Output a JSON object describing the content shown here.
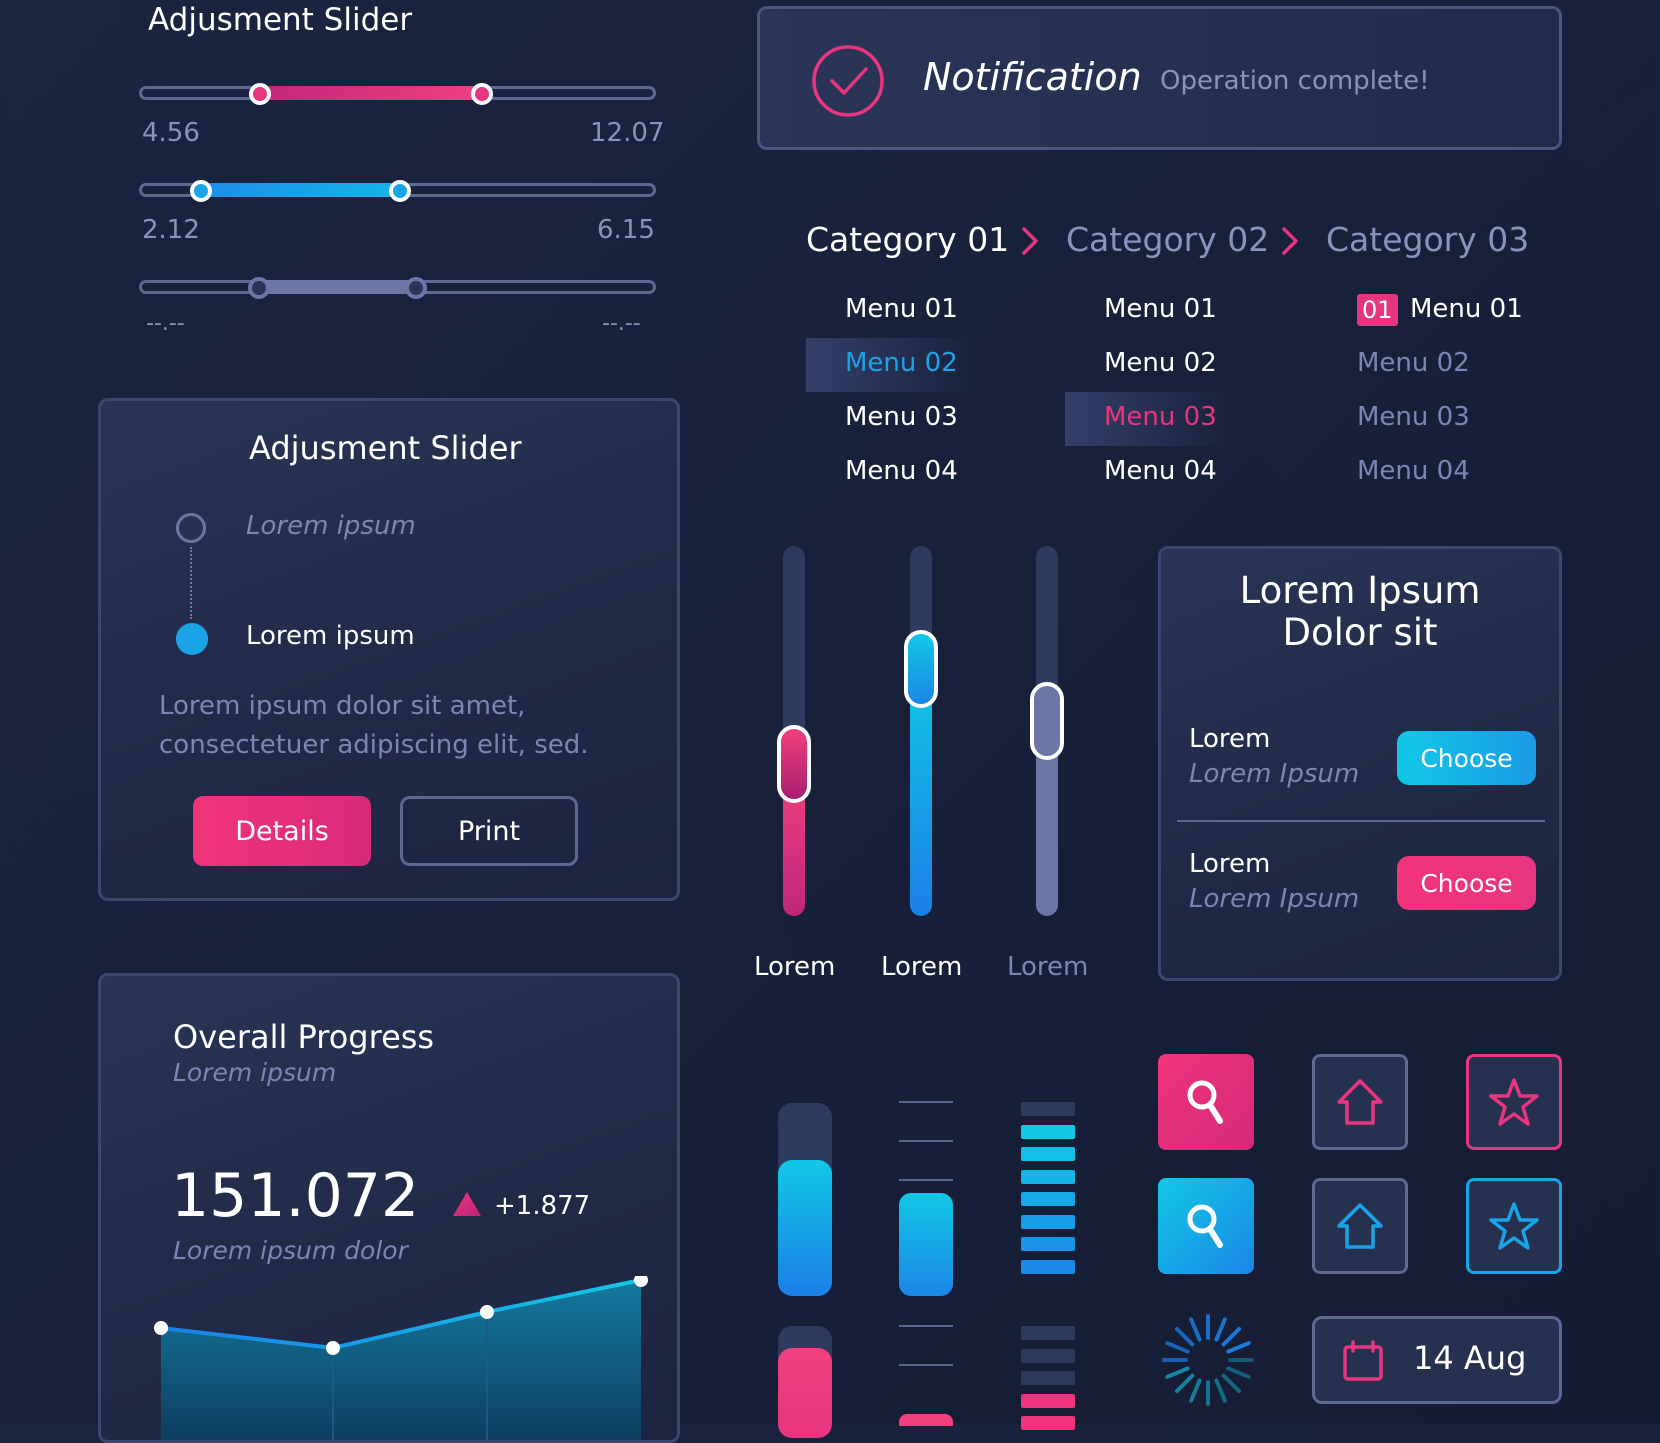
{
  "slider_group": {
    "title": "Adjusment Slider",
    "sliders": [
      {
        "min_label": "4.56",
        "max_label": "12.07",
        "range": [
          0.23,
          0.66
        ],
        "color": "#e8357f"
      },
      {
        "min_label": "2.12",
        "max_label": "6.15",
        "range": [
          0.12,
          0.5
        ],
        "color": "#1ba3e8"
      },
      {
        "min_label": "--.--",
        "max_label": "--.--",
        "range": [
          0.23,
          0.54
        ],
        "color": "#6b76a6"
      }
    ]
  },
  "notification": {
    "title": "Notification",
    "message": "Operation complete!"
  },
  "breadcrumb": {
    "categories": [
      "Category 01",
      "Category 02",
      "Category 03"
    ],
    "columns": [
      {
        "items": [
          "Menu 01",
          "Menu 02",
          "Menu 03",
          "Menu 04"
        ],
        "selected_index": 1
      },
      {
        "items": [
          "Menu 01",
          "Menu 02",
          "Menu 03",
          "Menu 04"
        ],
        "selected_index": 2
      },
      {
        "items": [
          "Menu 01",
          "Menu 02",
          "Menu 03",
          "Menu 04"
        ],
        "badge": "01"
      }
    ]
  },
  "adjust_card": {
    "title": "Adjusment Slider",
    "step1": "Lorem ipsum",
    "step2": "Lorem ipsum",
    "body_line1": "Lorem ipsum dolor sit amet,",
    "body_line2": "consectetuer adipiscing elit, sed.",
    "details_label": "Details",
    "print_label": "Print"
  },
  "vertical_sliders": [
    {
      "label": "Lorem",
      "level": 0.4,
      "color": "pink"
    },
    {
      "label": "Lorem",
      "level": 0.66,
      "color": "blue"
    },
    {
      "label": "Lorem",
      "level": 0.52,
      "color": "gray"
    }
  ],
  "choose_card": {
    "title_line1": "Lorem Ipsum",
    "title_line2": "Dolor sit",
    "rows": [
      {
        "label": "Lorem",
        "sub": "Lorem Ipsum",
        "button": "Choose"
      },
      {
        "label": "Lorem",
        "sub": "Lorem Ipsum",
        "button": "Choose"
      }
    ]
  },
  "progress_card": {
    "title": "Overall Progress",
    "subtitle": "Lorem ipsum",
    "value": "151.072",
    "delta": "+1.877",
    "caption": "Lorem ipsum dolor"
  },
  "icons": [
    "search-icon",
    "home-icon",
    "star-icon",
    "calendar-icon",
    "loading-spinner-icon"
  ],
  "date_widget": {
    "label": "14 Aug"
  },
  "colors": {
    "pink": "#f0347c",
    "blue": "#18a6e6",
    "cyan": "#12c8e6",
    "panel": "#222b48",
    "text_muted": "#7c86b4"
  }
}
